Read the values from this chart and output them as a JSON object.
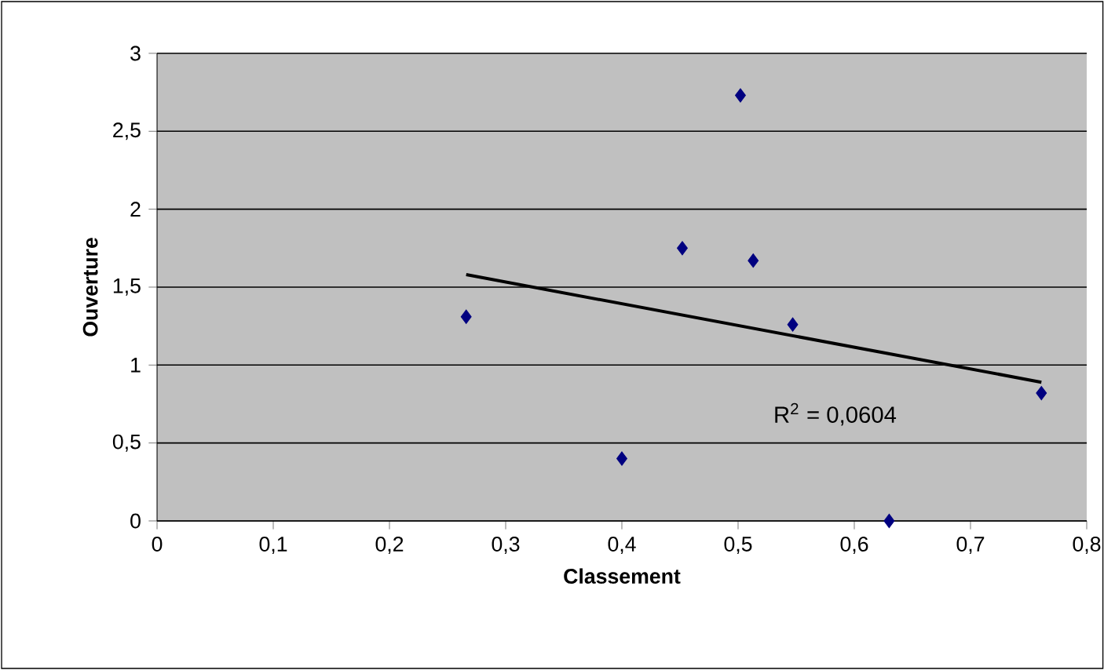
{
  "chart_data": {
    "type": "scatter",
    "xlabel": "Classement",
    "ylabel": "Ouverture",
    "xlim": [
      0,
      0.8
    ],
    "ylim": [
      0,
      3
    ],
    "xticks": [
      0,
      {
        "value": 0.1,
        "label": "0,1"
      },
      {
        "value": 0.2,
        "label": "0,2"
      },
      {
        "value": 0.3,
        "label": "0,3"
      },
      {
        "value": 0.4,
        "label": "0,4"
      },
      {
        "value": 0.5,
        "label": "0,5"
      },
      {
        "value": 0.6,
        "label": "0,6"
      },
      {
        "value": 0.7,
        "label": "0,7"
      },
      {
        "value": 0.8,
        "label": "0,8"
      }
    ],
    "yticks": [
      0,
      {
        "value": 0.5,
        "label": "0,5"
      },
      1,
      {
        "value": 1.5,
        "label": "1,5"
      },
      2,
      {
        "value": 2.5,
        "label": "2,5"
      },
      3
    ],
    "grid": "y",
    "marker": "diamond",
    "series": [
      {
        "color": "#000080",
        "x": [
          0.266,
          0.4,
          0.452,
          0.502,
          0.513,
          0.547,
          0.63,
          0.761
        ],
        "values": [
          1.31,
          0.4,
          1.75,
          2.73,
          1.67,
          1.26,
          0,
          0.82
        ]
      },
      {
        "type": "line",
        "color": "#000000",
        "marker": "none",
        "x": [
          0.266,
          0.761
        ],
        "values": [
          1.58,
          0.89
        ]
      }
    ],
    "annotations": [
      "R$^{2}$ = 0,0604"
    ]
  }
}
